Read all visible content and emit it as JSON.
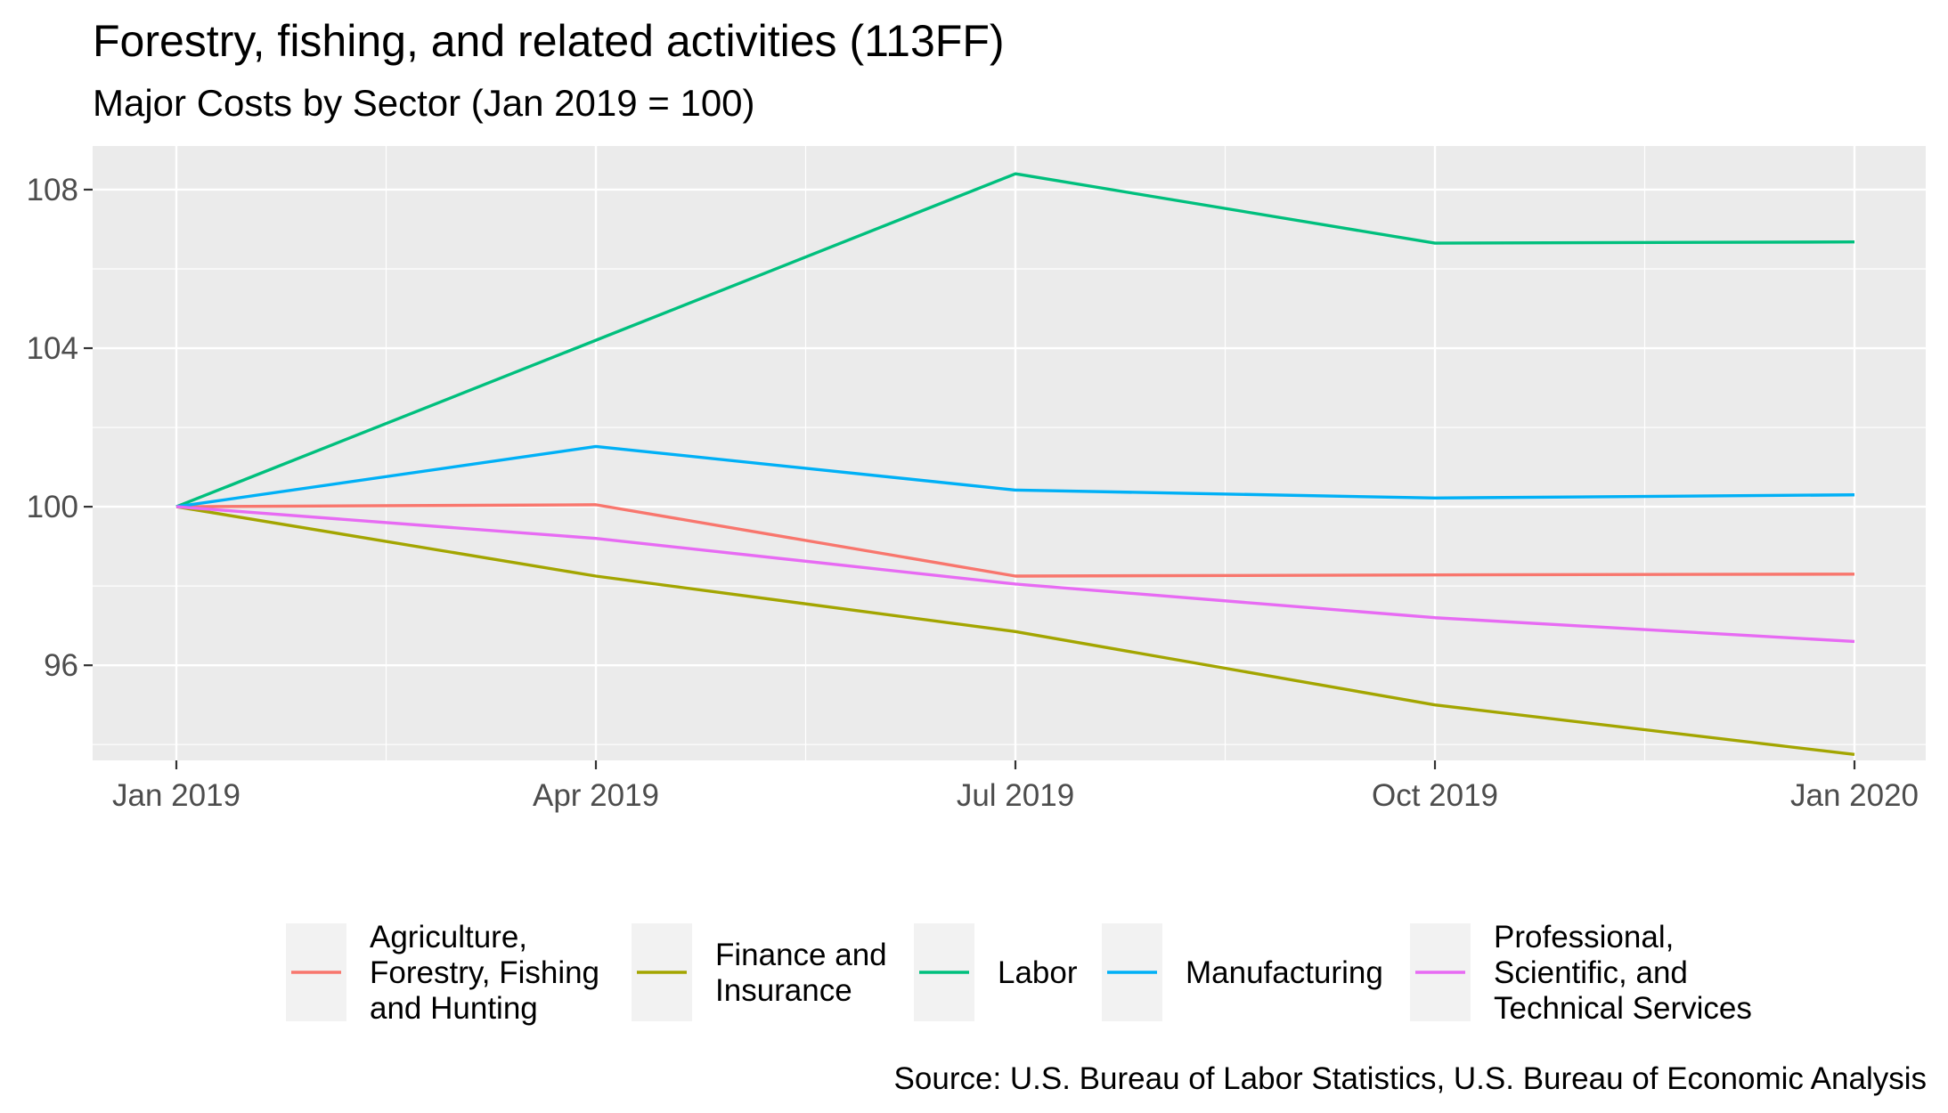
{
  "chart_data": {
    "type": "line",
    "title": "Forestry, fishing, and related activities (113FF)",
    "subtitle": "Major Costs by Sector (Jan 2019 = 100)",
    "caption": "Source: U.S. Bureau of Labor Statistics, U.S. Bureau of Economic Analysis",
    "x": [
      "Jan 2019",
      "Apr 2019",
      "Jul 2019",
      "Oct 2019",
      "Jan 2020"
    ],
    "x_tick_labels": [
      "Jan 2019",
      "Apr 2019",
      "Jul 2019",
      "Oct 2019",
      "Jan 2020"
    ],
    "y_ticks": [
      96,
      100,
      104,
      108
    ],
    "ylim": [
      93.6,
      109.1
    ],
    "grid": true,
    "legend_position": "bottom",
    "series": [
      {
        "name": "Agriculture, Forestry, Fishing and Hunting",
        "legend_lines": [
          "Agriculture,",
          "Forestry, Fishing",
          "and Hunting"
        ],
        "color": "#F8766D",
        "values": [
          100.0,
          100.05,
          98.25,
          98.28,
          98.3
        ]
      },
      {
        "name": "Finance and Insurance",
        "legend_lines": [
          "Finance and",
          "Insurance"
        ],
        "color": "#A3A500",
        "values": [
          100.0,
          98.25,
          96.85,
          95.0,
          93.75
        ]
      },
      {
        "name": "Labor",
        "legend_lines": [
          "Labor"
        ],
        "color": "#00BF7D",
        "values": [
          100.0,
          104.2,
          108.4,
          106.65,
          106.68
        ]
      },
      {
        "name": "Manufacturing",
        "legend_lines": [
          "Manufacturing"
        ],
        "color": "#00B0F6",
        "values": [
          100.0,
          101.52,
          100.42,
          100.22,
          100.3
        ]
      },
      {
        "name": "Professional, Scientific, and Technical Services",
        "legend_lines": [
          "Professional,",
          "Scientific, and",
          "Technical Services"
        ],
        "color": "#E76BF3",
        "values": [
          100.0,
          99.2,
          98.05,
          97.2,
          96.6
        ]
      }
    ]
  }
}
